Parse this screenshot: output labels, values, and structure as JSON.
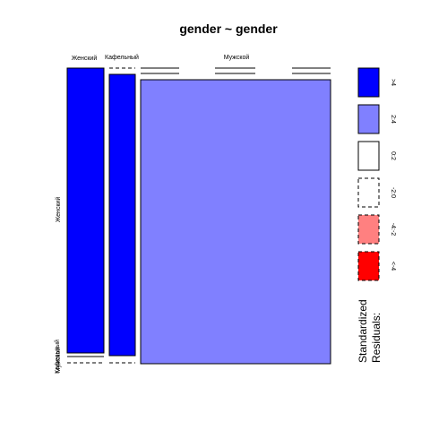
{
  "chart_data": {
    "type": "mosaic",
    "title": "gender ~ gender",
    "top_categories": [
      "Женский",
      "Кафельный",
      "Мужской"
    ],
    "left_categories": [
      "Женский",
      "Кафельный",
      "Мужской"
    ],
    "cells": [
      {
        "col": "Женский",
        "row": "Женский",
        "residual_class": ">4",
        "fill": "#0000FF"
      },
      {
        "col": "Кафельный",
        "row": "Кафельный",
        "residual_class": ">4",
        "fill": "#0000FF"
      },
      {
        "col": "Мужской",
        "row": "Мужской",
        "residual_class": "2:4",
        "fill": "#8080FF"
      }
    ],
    "legend": {
      "title": "Standardized\nResiduals:",
      "entries": [
        {
          "label": ">4",
          "fill": "#0000FF",
          "border": "solid"
        },
        {
          "label": "2:4",
          "fill": "#8080FF",
          "border": "solid"
        },
        {
          "label": "0:2",
          "fill": "#FFFFFF",
          "border": "solid"
        },
        {
          "label": "-2:0",
          "fill": "#FFFFFF",
          "border": "dashed"
        },
        {
          "label": "-4:-2",
          "fill": "#FF8080",
          "border": "dashed"
        },
        {
          "label": "<-4",
          "fill": "#FF0000",
          "border": "dashed"
        }
      ]
    }
  }
}
